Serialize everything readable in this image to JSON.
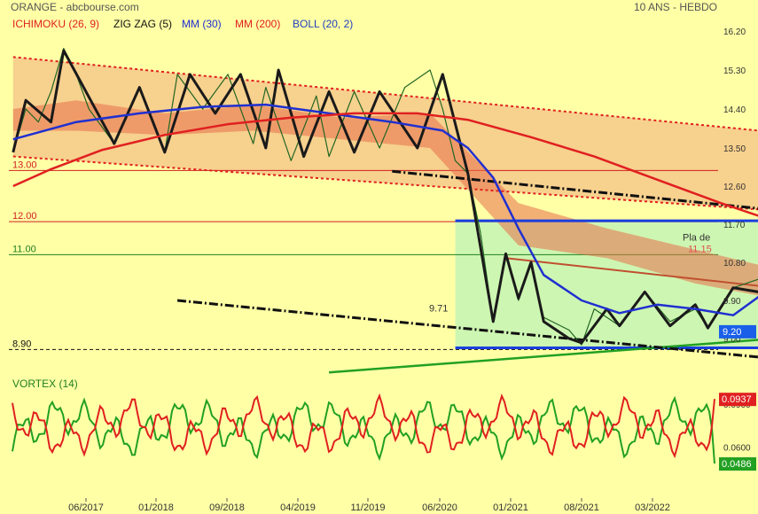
{
  "header": {
    "title": "ORANGE - abcbourse.com",
    "period": "10 ANS - HEBDO"
  },
  "legend": [
    {
      "label": "ICHIMOKU (26, 9)",
      "color": "#e02020"
    },
    {
      "label": "ZIG ZAG (5)",
      "color": "#111111"
    },
    {
      "label": "MM (30)",
      "color": "#2030d0"
    },
    {
      "label": "MM (200)",
      "color": "#e02020"
    },
    {
      "label": "BOLL (20, 2)",
      "color": "#2040c0"
    }
  ],
  "chart_data": [
    {
      "type": "line",
      "panel": "price",
      "y_ticks": [
        "16.20",
        "15.30",
        "14.40",
        "13.50",
        "12.60",
        "11.70",
        "10.80",
        "9.90",
        "9.00"
      ],
      "ylim": [
        8.3,
        16.4
      ],
      "x_ticks": [
        "06/2017",
        "01/2018",
        "09/2018",
        "04/2019",
        "11/2019",
        "06/2020",
        "01/2021",
        "08/2021",
        "03/2022"
      ],
      "horizontal_levels": [
        {
          "label": "13.00",
          "value": 12.97,
          "color": "#d02020"
        },
        {
          "label": "12.00",
          "value": 11.76,
          "color": "#d02020"
        },
        {
          "label": "11.00",
          "value": 10.98,
          "color": "#208020"
        },
        {
          "label": "8.90",
          "value": 8.74,
          "color": "#111111"
        }
      ],
      "annotations": [
        {
          "label": "9.71",
          "value": 9.72
        },
        {
          "label": "11.15",
          "value": 11.12
        },
        {
          "label": "Pla de",
          "value": 11.4
        }
      ],
      "last_price": {
        "label": "9.20",
        "value": 9.17,
        "color": "#1a5fe8"
      },
      "series": [
        {
          "kind": "close",
          "color": "#226622",
          "x": [
            "2017-01",
            "2017-02",
            "2017-03",
            "2017-04",
            "2017-05",
            "2017-06",
            "2017-07",
            "2017-09",
            "2017-11",
            "2018-01",
            "2018-02",
            "2018-04",
            "2018-06",
            "2018-08",
            "2018-09",
            "2018-11",
            "2019-01",
            "2019-02",
            "2019-04",
            "2019-06",
            "2019-08",
            "2019-10",
            "2019-11",
            "2019-12",
            "2020-01",
            "2020-02",
            "2020-03",
            "2020-04",
            "2020-05",
            "2020-06",
            "2020-07",
            "2020-09",
            "2020-10",
            "2020-11",
            "2021-01",
            "2021-03",
            "2021-05",
            "2021-07",
            "2021-08",
            "2021-10",
            "2021-12",
            "2022-01",
            "2022-02",
            "2022-03",
            "2022-04",
            "2022-05",
            "2022-06",
            "2022-07",
            "2022-08"
          ],
          "values": [
            13.4,
            14.4,
            14.1,
            14.8,
            15.8,
            15.2,
            14.4,
            13.6,
            14.9,
            13.4,
            15.2,
            14.4,
            15.2,
            13.6,
            14.9,
            13.2,
            14.7,
            13.3,
            14.8,
            13.5,
            14.9,
            15.3,
            14.4,
            13.2,
            12.9,
            11.5,
            9.4,
            11.0,
            9.9,
            10.8,
            9.5,
            9.2,
            8.85,
            9.7,
            9.3,
            10.1,
            9.4,
            9.7,
            9.25,
            10.2,
            10.4,
            11.1,
            11.75,
            11.4,
            10.7,
            10.2,
            9.7,
            9.2,
            9.2
          ]
        },
        {
          "kind": "zigzag",
          "name": "ZIG ZAG (5)",
          "color": "#1a1a1a",
          "x": [
            "2017-01",
            "2017-02",
            "2017-04",
            "2017-05",
            "2017-09",
            "2017-11",
            "2018-01",
            "2018-03",
            "2018-05",
            "2018-07",
            "2018-09",
            "2018-10",
            "2018-12",
            "2019-02",
            "2019-04",
            "2019-06",
            "2019-09",
            "2019-11",
            "2020-01",
            "2020-03",
            "2020-04",
            "2020-05",
            "2020-06",
            "2020-07",
            "2020-09",
            "2020-10",
            "2020-12",
            "2021-01",
            "2021-03",
            "2021-05",
            "2021-07",
            "2021-08",
            "2021-10",
            "2021-12",
            "2022-01",
            "2022-02",
            "2022-03",
            "2022-04",
            "2022-05",
            "2022-06",
            "2022-08"
          ],
          "values": [
            13.4,
            14.6,
            14.1,
            15.75,
            13.6,
            14.9,
            13.4,
            15.2,
            14.3,
            15.2,
            13.5,
            15.3,
            13.3,
            14.8,
            13.4,
            14.8,
            13.5,
            15.2,
            12.9,
            9.4,
            11.0,
            9.95,
            10.8,
            9.4,
            9.0,
            8.9,
            9.7,
            9.3,
            10.1,
            9.3,
            9.8,
            9.25,
            10.2,
            10.1,
            10.5,
            11.1,
            11.75,
            10.8,
            11.3,
            10.1,
            9.15
          ]
        },
        {
          "kind": "moving_average",
          "name": "MM (30)",
          "color": "#2030d0",
          "x": [
            "2017-01",
            "2017-06",
            "2017-11",
            "2018-04",
            "2018-09",
            "2019-02",
            "2019-07",
            "2019-11",
            "2020-01",
            "2020-03",
            "2020-05",
            "2020-07",
            "2020-10",
            "2021-01",
            "2021-04",
            "2021-07",
            "2021-10",
            "2022-01",
            "2022-04",
            "2022-06",
            "2022-08"
          ],
          "values": [
            13.7,
            14.1,
            14.3,
            14.45,
            14.5,
            14.3,
            14.1,
            13.9,
            13.5,
            12.8,
            11.6,
            10.5,
            9.9,
            9.6,
            9.8,
            9.7,
            9.55,
            10.2,
            10.7,
            10.8,
            10.6
          ]
        },
        {
          "kind": "moving_average",
          "name": "MM (200)",
          "color": "#e02020",
          "x": [
            "2017-01",
            "2017-04",
            "2017-08",
            "2018-01",
            "2018-06",
            "2018-11",
            "2019-04",
            "2019-09",
            "2020-01",
            "2020-06",
            "2020-11",
            "2021-04",
            "2021-09",
            "2022-02",
            "2022-08"
          ],
          "values": [
            12.6,
            13.0,
            13.45,
            13.8,
            14.05,
            14.2,
            14.3,
            14.3,
            14.15,
            13.75,
            13.3,
            12.75,
            12.2,
            11.7,
            11.2
          ]
        }
      ],
      "ichimoku_cloud": {
        "x": [
          "2017-01",
          "2017-06",
          "2018-01",
          "2018-08",
          "2019-03",
          "2019-10",
          "2020-05",
          "2020-12",
          "2021-07",
          "2022-02",
          "2022-07"
        ],
        "upper": [
          14.4,
          14.6,
          14.3,
          14.5,
          14.2,
          14.3,
          12.2,
          11.6,
          11.1,
          10.6,
          10.7
        ],
        "lower": [
          13.9,
          13.9,
          13.8,
          13.9,
          13.7,
          13.5,
          11.2,
          10.9,
          10.3,
          9.9,
          9.7
        ]
      },
      "trend_channels": [
        {
          "name": "upper-channel-top",
          "color": "#e02020",
          "style": "dotted",
          "x": [
            "2017-01",
            "2022-07"
          ],
          "values": [
            15.6,
            13.7
          ]
        },
        {
          "name": "upper-channel-bottom",
          "color": "#e02020",
          "style": "dotted",
          "x": [
            "2017-01",
            "2022-07"
          ],
          "values": [
            13.3,
            11.9
          ]
        },
        {
          "name": "mid-resistance",
          "color": "#c05030",
          "style": "solid",
          "x": [
            "2020-04",
            "2022-09"
          ],
          "values": [
            10.9,
            9.95
          ]
        },
        {
          "name": "range-top",
          "color": "#1a3fe0",
          "style": "solid",
          "x": [
            "2019-12",
            "2022-09"
          ],
          "values": [
            11.78,
            11.78
          ]
        },
        {
          "name": "range-bottom",
          "color": "#1a3fe0",
          "style": "solid",
          "x": [
            "2019-12",
            "2022-09"
          ],
          "values": [
            8.78,
            8.78
          ]
        },
        {
          "name": "support-uptrend",
          "color": "#22a022",
          "style": "solid",
          "x": [
            "2019-02",
            "2022-08"
          ],
          "values": [
            8.2,
            9.15
          ]
        },
        {
          "name": "black-downtrend-top",
          "color": "#111111",
          "style": "dashdot",
          "x": [
            "2019-07",
            "2022-09"
          ],
          "values": [
            12.95,
            11.8
          ]
        },
        {
          "name": "black-downtrend-bottom",
          "color": "#111111",
          "style": "dashdot",
          "x": [
            "2018-02",
            "2022-09"
          ],
          "values": [
            9.9,
            8.3
          ]
        }
      ]
    },
    {
      "type": "line",
      "panel": "indicator",
      "title": "VORTEX (14)",
      "y_ticks": [
        "0.0900",
        "0.0600"
      ],
      "ylim": [
        0.035,
        0.1
      ],
      "series": [
        {
          "name": "VI+",
          "color": "#e02020",
          "last_label": "0.0937",
          "last_value": 0.0937
        },
        {
          "name": "VI-",
          "color": "#22a022",
          "last_label": "0.0486",
          "last_value": 0.0486
        }
      ]
    }
  ]
}
